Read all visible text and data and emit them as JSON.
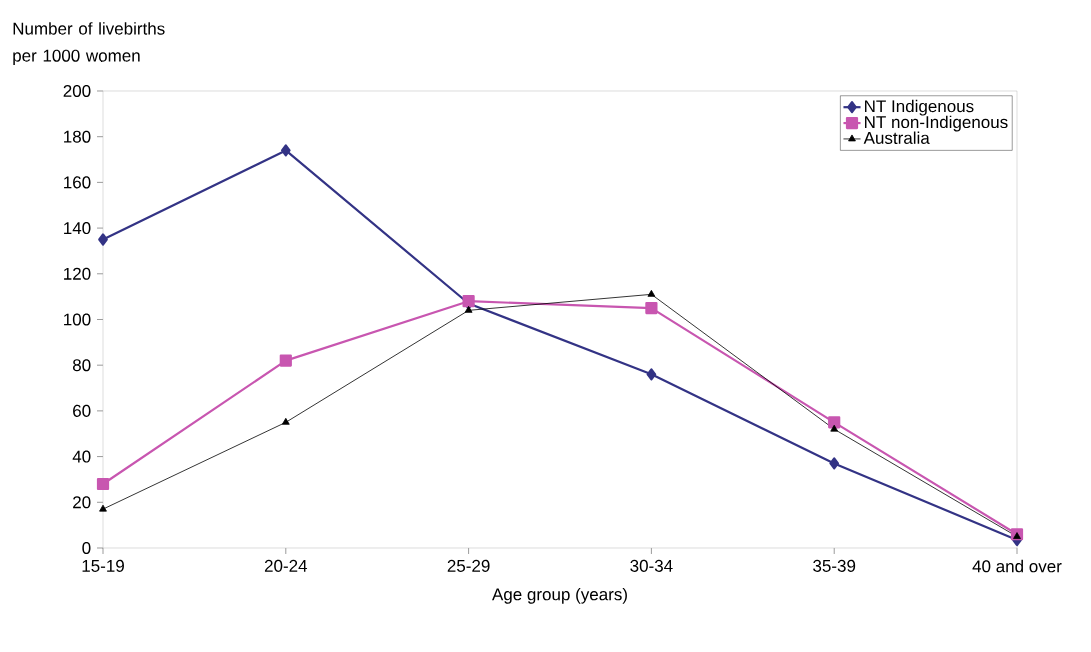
{
  "chart_data": {
    "type": "line",
    "ylabel": "Number of livebirths per 1000 women",
    "xlabel": "Age group (years)",
    "categories": [
      "15-19",
      "20-24",
      "25-29",
      "30-34",
      "35-39",
      "40 and over"
    ],
    "series": [
      {
        "name": "NT Indigenous",
        "color": "#333385",
        "marker": "diamond",
        "values": [
          135,
          174,
          107,
          76,
          37,
          3.5
        ]
      },
      {
        "name": "NT non-Indigenous",
        "color": "#c856b0",
        "marker": "square",
        "values": [
          28,
          82,
          108,
          105,
          55,
          6
        ]
      },
      {
        "name": "Australia",
        "color": "#000000",
        "marker": "triangle",
        "values": [
          17,
          55,
          104,
          111,
          52,
          5
        ]
      }
    ],
    "ylim": [
      0,
      200
    ],
    "yticks": [
      0,
      20,
      40,
      60,
      80,
      100,
      120,
      140,
      160,
      180,
      200
    ],
    "grid": false,
    "legend": "top right",
    "line_style": "solid"
  }
}
